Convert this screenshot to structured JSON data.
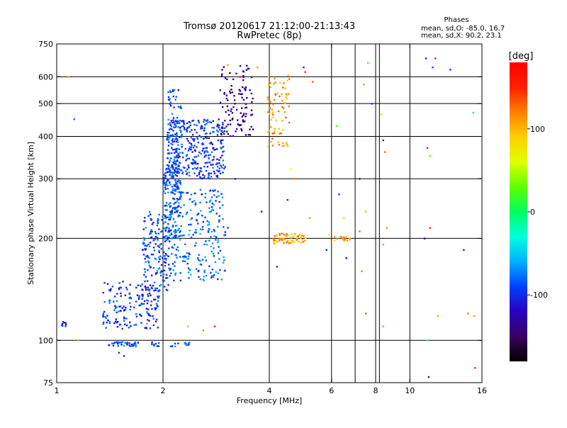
{
  "chart_data": {
    "type": "scatter",
    "title": "Tromsø 20120617 21:12:00-21:13:43",
    "subtitle": "RwPretec (8p)",
    "xlabel": "Frequency [MHz]",
    "ylabel": "Stationary phase Virtual Height [km]",
    "xscale": "log",
    "yscale": "log",
    "xlim": [
      1,
      16
    ],
    "ylim": [
      75,
      750
    ],
    "x_ticks": [
      1,
      2,
      4,
      6,
      8,
      10,
      16
    ],
    "x_tick_labels": [
      "1",
      "2",
      "4",
      "6",
      "8",
      "10",
      "16"
    ],
    "x_grid": [
      2,
      4,
      6,
      8,
      10
    ],
    "x_grid_minor": [
      7,
      8.2
    ],
    "y_ticks": [
      75,
      100,
      200,
      300,
      400,
      500,
      600,
      750
    ],
    "y_tick_labels": [
      "75",
      "100",
      "200",
      "300",
      "400",
      "500",
      "600",
      "750"
    ],
    "y_grid": [
      100,
      200,
      300,
      400,
      500,
      600
    ],
    "grid": true,
    "info": {
      "heading": "Phases",
      "line1": "mean, sd,O: -85.0, 16.7",
      "line2": "mean, sd,X:  90.2, 23.1"
    },
    "colorbar": {
      "label": "[deg]",
      "tick_labels": [
        "100",
        "0",
        "-100"
      ],
      "tick_values": [
        100,
        0,
        -100
      ],
      "range": [
        -180,
        180
      ],
      "colors": [
        "#000000",
        "#3a0060",
        "#2a00c0",
        "#0040ff",
        "#00b0ff",
        "#00ffe0",
        "#00ff60",
        "#60ff00",
        "#e0ff00",
        "#ffd000",
        "#ff8000",
        "#ff2000",
        "#ff0000"
      ]
    },
    "clusters": [
      {
        "name": "low",
        "x": [
          1.35,
          1.95
        ],
        "y": [
          108,
          150
        ],
        "phase": -95,
        "n": 170
      },
      {
        "name": "band95a",
        "x": [
          1.4,
          1.7
        ],
        "y": [
          96,
          99
        ],
        "phase": -92,
        "n": 40
      },
      {
        "name": "band95b",
        "x": [
          1.85,
          1.95
        ],
        "y": [
          96,
          99
        ],
        "phase": -95,
        "n": 10
      },
      {
        "name": "band95c",
        "x": [
          2.1,
          2.4
        ],
        "y": [
          96,
          99
        ],
        "phase": -90,
        "n": 14
      },
      {
        "name": "blue-left",
        "x": [
          1.02,
          1.1
        ],
        "y": [
          110,
          114
        ],
        "phase": -100,
        "n": 8
      },
      {
        "name": "e-ramp1",
        "x": [
          1.75,
          2.1
        ],
        "y": [
          140,
          240
        ],
        "phase": -90,
        "n": 170
      },
      {
        "name": "e-ramp2",
        "x": [
          2.0,
          2.25
        ],
        "y": [
          200,
          330
        ],
        "phase": -85,
        "n": 170
      },
      {
        "name": "mid",
        "x": [
          2.1,
          3.0
        ],
        "y": [
          150,
          280
        ],
        "phase": -80,
        "n": 230
      },
      {
        "name": "f-body",
        "x": [
          2.05,
          3.0
        ],
        "y": [
          300,
          450
        ],
        "phase": -95,
        "n": 320
      },
      {
        "name": "f-column",
        "x": [
          2.05,
          2.25
        ],
        "y": [
          280,
          550
        ],
        "phase": -90,
        "n": 110
      },
      {
        "name": "trace-up",
        "x": [
          2.9,
          3.6
        ],
        "y": [
          400,
          650
        ],
        "phase": -135,
        "n": 110
      },
      {
        "name": "x-trace",
        "x": [
          3.95,
          4.55
        ],
        "y": [
          370,
          610
        ],
        "phase": 110,
        "n": 75
      },
      {
        "name": "x-200",
        "x": [
          4.1,
          5.1
        ],
        "y": [
          193,
          207
        ],
        "phase": 110,
        "n": 65
      },
      {
        "name": "x-200b",
        "x": [
          6.1,
          6.8
        ],
        "y": [
          197,
          203
        ],
        "phase": 105,
        "n": 18
      }
    ],
    "scatter_points": [
      {
        "x": 11.6,
        "y": 640,
        "phase": -90
      },
      {
        "x": 11.1,
        "y": 680,
        "phase": -110
      },
      {
        "x": 11.8,
        "y": 680,
        "phase": 160
      },
      {
        "x": 13.0,
        "y": 630,
        "phase": -95
      },
      {
        "x": 7.6,
        "y": 660,
        "phase": 20
      },
      {
        "x": 5.0,
        "y": 640,
        "phase": -100
      },
      {
        "x": 5.05,
        "y": 620,
        "phase": 150
      },
      {
        "x": 5.3,
        "y": 580,
        "phase": 130
      },
      {
        "x": 7.4,
        "y": 570,
        "phase": 110
      },
      {
        "x": 7.8,
        "y": 500,
        "phase": -100
      },
      {
        "x": 8.3,
        "y": 465,
        "phase": 90
      },
      {
        "x": 8.4,
        "y": 390,
        "phase": -100
      },
      {
        "x": 6.2,
        "y": 430,
        "phase": 20
      },
      {
        "x": 15.1,
        "y": 470,
        "phase": 10
      },
      {
        "x": 8.5,
        "y": 360,
        "phase": 130
      },
      {
        "x": 11.4,
        "y": 350,
        "phase": 30
      },
      {
        "x": 11.2,
        "y": 370,
        "phase": 170
      },
      {
        "x": 4.6,
        "y": 320,
        "phase": 60
      },
      {
        "x": 4.7,
        "y": 300,
        "phase": 120
      },
      {
        "x": 3.2,
        "y": 300,
        "phase": -100
      },
      {
        "x": 7.2,
        "y": 300,
        "phase": -110
      },
      {
        "x": 6.3,
        "y": 270,
        "phase": -90
      },
      {
        "x": 4.5,
        "y": 260,
        "phase": -100
      },
      {
        "x": 3.8,
        "y": 240,
        "phase": -110
      },
      {
        "x": 5.2,
        "y": 230,
        "phase": 110
      },
      {
        "x": 6.5,
        "y": 230,
        "phase": 90
      },
      {
        "x": 7.2,
        "y": 210,
        "phase": 130
      },
      {
        "x": 7.5,
        "y": 240,
        "phase": 100
      },
      {
        "x": 8.6,
        "y": 215,
        "phase": 120
      },
      {
        "x": 11.0,
        "y": 200,
        "phase": -120
      },
      {
        "x": 11.4,
        "y": 215,
        "phase": 150
      },
      {
        "x": 14.2,
        "y": 185,
        "phase": -100
      },
      {
        "x": 6.6,
        "y": 175,
        "phase": -110
      },
      {
        "x": 4.2,
        "y": 165,
        "phase": -100
      },
      {
        "x": 5.8,
        "y": 185,
        "phase": -100
      },
      {
        "x": 7.3,
        "y": 160,
        "phase": 120
      },
      {
        "x": 8.4,
        "y": 110,
        "phase": -20
      },
      {
        "x": 7.5,
        "y": 120,
        "phase": 130
      },
      {
        "x": 12.0,
        "y": 118,
        "phase": 30
      },
      {
        "x": 14.6,
        "y": 120,
        "phase": 120
      },
      {
        "x": 15.2,
        "y": 118,
        "phase": 110
      },
      {
        "x": 11.2,
        "y": 100,
        "phase": 10
      },
      {
        "x": 15.3,
        "y": 83,
        "phase": 150
      },
      {
        "x": 11.3,
        "y": 78,
        "phase": -110
      },
      {
        "x": 1.08,
        "y": 600,
        "phase": 110
      },
      {
        "x": 1.12,
        "y": 450,
        "phase": -80
      },
      {
        "x": 1.15,
        "y": 100,
        "phase": 110
      },
      {
        "x": 2.8,
        "y": 110,
        "phase": 150
      },
      {
        "x": 2.35,
        "y": 110,
        "phase": 100
      },
      {
        "x": 3.05,
        "y": 650,
        "phase": 110
      },
      {
        "x": 3.3,
        "y": 600,
        "phase": 160
      },
      {
        "x": 3.7,
        "y": 640,
        "phase": 110
      },
      {
        "x": 3.05,
        "y": 215,
        "phase": -100
      },
      {
        "x": 3.0,
        "y": 205,
        "phase": -90
      },
      {
        "x": 1.55,
        "y": 90,
        "phase": -110
      },
      {
        "x": 1.5,
        "y": 92,
        "phase": -100
      },
      {
        "x": 2.6,
        "y": 107,
        "phase": 120
      },
      {
        "x": 1.8,
        "y": 112,
        "phase": 120
      },
      {
        "x": 8.4,
        "y": 192,
        "phase": 10
      },
      {
        "x": 5.9,
        "y": 205,
        "phase": 60
      }
    ]
  }
}
